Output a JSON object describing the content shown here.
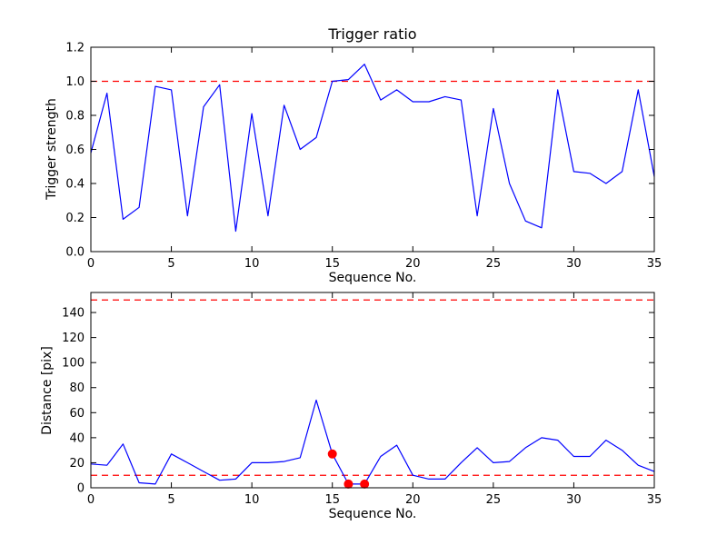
{
  "figure": {
    "background": "#ffffff",
    "axes_color": "#000000",
    "line_color": "#0000ff",
    "threshold_color": "#ff0000",
    "marker_color": "#ff0000"
  },
  "chart_data": [
    {
      "type": "line",
      "title": "Trigger ratio",
      "xlabel": "Sequence No.",
      "ylabel": "Trigger strength",
      "xlim": [
        0,
        35
      ],
      "ylim": [
        0.0,
        1.2
      ],
      "grid": false,
      "legend": null,
      "xtick_vals": [
        0,
        5,
        10,
        15,
        20,
        25,
        30,
        35
      ],
      "xtick_labels": [
        "0",
        "5",
        "10",
        "15",
        "20",
        "25",
        "30",
        "35"
      ],
      "ytick_vals": [
        0.0,
        0.2,
        0.4,
        0.6,
        0.8,
        1.0,
        1.2
      ],
      "ytick_labels": [
        "0.0",
        "0.2",
        "0.4",
        "0.6",
        "0.8",
        "1.0",
        "1.2"
      ],
      "x": [
        0,
        1,
        2,
        3,
        4,
        5,
        6,
        7,
        8,
        9,
        10,
        11,
        12,
        13,
        14,
        15,
        16,
        17,
        18,
        19,
        20,
        21,
        22,
        23,
        24,
        25,
        26,
        27,
        28,
        29,
        30,
        31,
        32,
        33,
        34,
        35
      ],
      "series": [
        {
          "name": "trigger-strength",
          "color": "#0000ff",
          "values": [
            0.58,
            0.93,
            0.19,
            0.26,
            0.97,
            0.95,
            0.21,
            0.85,
            0.98,
            0.12,
            0.81,
            0.21,
            0.86,
            0.6,
            0.67,
            1.0,
            1.01,
            1.1,
            0.89,
            0.95,
            0.88,
            0.88,
            0.91,
            0.89,
            0.21,
            0.84,
            0.4,
            0.18,
            0.14,
            0.95,
            0.47,
            0.46,
            0.4,
            0.47,
            0.95,
            0.44
          ]
        }
      ],
      "hlines": [
        {
          "y": 1.0,
          "color": "#ff0000",
          "style": "dashed"
        }
      ],
      "markers": []
    },
    {
      "type": "line",
      "title": "",
      "xlabel": "Sequence No.",
      "ylabel": "Distance [pix]",
      "xlim": [
        0,
        35
      ],
      "ylim": [
        0,
        156
      ],
      "grid": false,
      "legend": null,
      "xtick_vals": [
        0,
        5,
        10,
        15,
        20,
        25,
        30,
        35
      ],
      "xtick_labels": [
        "0",
        "5",
        "10",
        "15",
        "20",
        "25",
        "30",
        "35"
      ],
      "ytick_vals": [
        0,
        20,
        40,
        60,
        80,
        100,
        120,
        140
      ],
      "ytick_labels": [
        "0",
        "20",
        "40",
        "60",
        "80",
        "100",
        "120",
        "140"
      ],
      "x": [
        0,
        1,
        2,
        3,
        4,
        5,
        6,
        7,
        8,
        9,
        10,
        11,
        12,
        13,
        14,
        15,
        16,
        17,
        18,
        19,
        20,
        21,
        22,
        23,
        24,
        25,
        26,
        27,
        28,
        29,
        30,
        31,
        32,
        33,
        34,
        35
      ],
      "series": [
        {
          "name": "distance",
          "color": "#0000ff",
          "values": [
            19,
            18,
            35,
            4,
            3,
            27,
            20,
            13,
            6,
            7,
            20,
            20,
            21,
            24,
            70,
            27,
            3,
            3,
            25,
            34,
            10,
            7,
            7,
            20,
            32,
            20,
            21,
            32,
            40,
            38,
            25,
            25,
            38,
            30,
            18,
            13
          ]
        }
      ],
      "hlines": [
        {
          "y": 150,
          "color": "#ff0000",
          "style": "dashed"
        },
        {
          "y": 10,
          "color": "#ff0000",
          "style": "dashed"
        }
      ],
      "markers": [
        {
          "x": 15,
          "y": 27,
          "color": "#ff0000"
        },
        {
          "x": 16,
          "y": 3,
          "color": "#ff0000"
        },
        {
          "x": 17,
          "y": 3,
          "color": "#ff0000"
        }
      ]
    }
  ]
}
